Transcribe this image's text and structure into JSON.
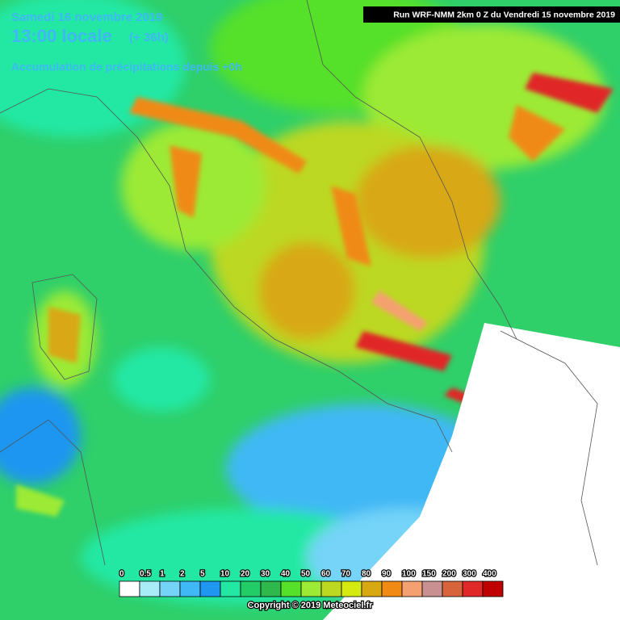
{
  "header": {
    "date": "Samedi 16 novembre 2019",
    "time": "13:00 locale",
    "lead": "(+ 36h)",
    "product": "Accumulation de précipitations depuis +0h",
    "run": "Run WRF-NMM 2km 0 Z du Vendredi 15 novembre 2019"
  },
  "legend": {
    "labels": [
      0,
      0.5,
      1,
      2,
      5,
      10,
      20,
      30,
      40,
      50,
      60,
      70,
      80,
      90,
      100,
      150,
      200,
      300,
      400
    ],
    "colors": [
      "#ffffff",
      "#a8ecf8",
      "#74d4f8",
      "#3fb8f5",
      "#1f96f0",
      "#22e8a4",
      "#22cc66",
      "#2fb84c",
      "#55e02a",
      "#9cea34",
      "#bcd820",
      "#d4ea10",
      "#d8a812",
      "#f08a14",
      "#f5a070",
      "#c89090",
      "#d8643c",
      "#e02828",
      "#c00000"
    ]
  },
  "footer": {
    "copyright": "Copyright © 2019 Meteociel.fr"
  }
}
